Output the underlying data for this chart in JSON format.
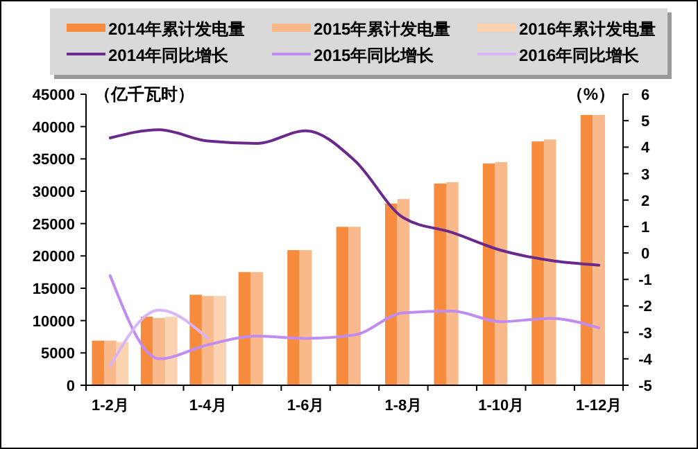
{
  "chart_data": {
    "type": "bar",
    "ylabel": "（亿千瓦时）",
    "y2label": "（%）",
    "categories": [
      "1-2月",
      null,
      "1-4月",
      null,
      "1-6月",
      null,
      "1-8月",
      null,
      "1-10月",
      null,
      "1-12月"
    ],
    "series": [
      {
        "name": "2014年累计发电量",
        "color": "#f78c3e",
        "values": [
          6900,
          10600,
          14000,
          17500,
          20900,
          24500,
          28100,
          31200,
          34300,
          37700,
          41800
        ]
      },
      {
        "name": "2015年累计发电量",
        "color": "#f9b98a",
        "values": [
          6900,
          10400,
          13800,
          17500,
          20900,
          24500,
          28800,
          31400,
          34500,
          38000,
          41800
        ]
      },
      {
        "name": "2016年累计发电量",
        "color": "#fcd3b0",
        "values": [
          6700,
          10600,
          13800,
          null,
          null,
          null,
          null,
          null,
          null,
          null,
          null
        ]
      },
      {
        "name": "2014年同比增长",
        "type": "line",
        "axis": "y2",
        "color": "#6a2a8c",
        "values": [
          4.35,
          4.66,
          4.23,
          4.14,
          4.62,
          3.5,
          1.33,
          0.77,
          0.1,
          -0.28,
          -0.46
        ]
      },
      {
        "name": "2015年同比增长",
        "type": "line",
        "axis": "y2",
        "color": "#c08cf0",
        "values": [
          -0.86,
          -4.0,
          -3.47,
          -3.14,
          -3.23,
          -3.1,
          -2.26,
          -2.2,
          -2.6,
          -2.47,
          -2.83
        ]
      },
      {
        "name": "2016年同比增长",
        "type": "line",
        "axis": "y2",
        "color": "#d8b4f8",
        "values": [
          -4.26,
          -2.16,
          -3.23,
          null,
          null,
          null,
          null,
          null,
          null,
          null,
          null
        ]
      }
    ],
    "ylim": [
      0,
      45000
    ],
    "yticks": [
      0,
      5000,
      10000,
      15000,
      20000,
      25000,
      30000,
      35000,
      40000,
      45000
    ],
    "y2lim": [
      -5,
      6
    ],
    "y2ticks": [
      -5,
      -4,
      -3,
      -2,
      -1,
      0,
      1,
      2,
      3,
      4,
      5,
      6
    ],
    "legend": "top"
  }
}
